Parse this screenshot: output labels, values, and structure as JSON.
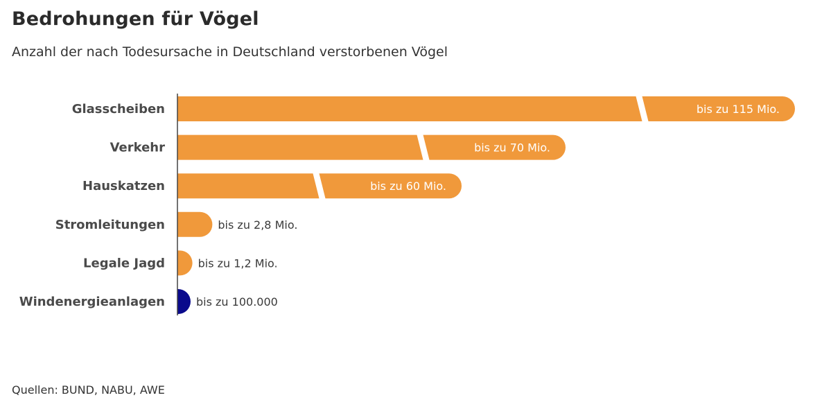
{
  "title": "Bedrohungen für Vögel",
  "subtitle": "Anzahl der nach Todesursache in Deutschland verstorbenen Vögel",
  "source": "Quellen: BUND, NABU, AWE",
  "colors": {
    "bar": "#f0993b",
    "highlight": "#0a0a8c",
    "axis": "#444444"
  },
  "chart_data": {
    "type": "bar",
    "orientation": "horizontal",
    "categories": [
      "Glasscheiben",
      "Verkehr",
      "Hauskatzen",
      "Stromleitungen",
      "Legale Jagd",
      "Windenergieanlagen"
    ],
    "values": [
      115000000,
      70000000,
      60000000,
      2800000,
      1200000,
      100000
    ],
    "value_labels": [
      "bis zu 115 Mio.",
      "bis zu 70 Mio.",
      "bis zu 60 Mio.",
      "bis zu 2,8 Mio.",
      "bis zu 1,2 Mio.",
      "bis zu 100.000"
    ],
    "axis_break": true,
    "highlight_category": "Windenergieanlagen",
    "grid": false,
    "legend": "none"
  }
}
